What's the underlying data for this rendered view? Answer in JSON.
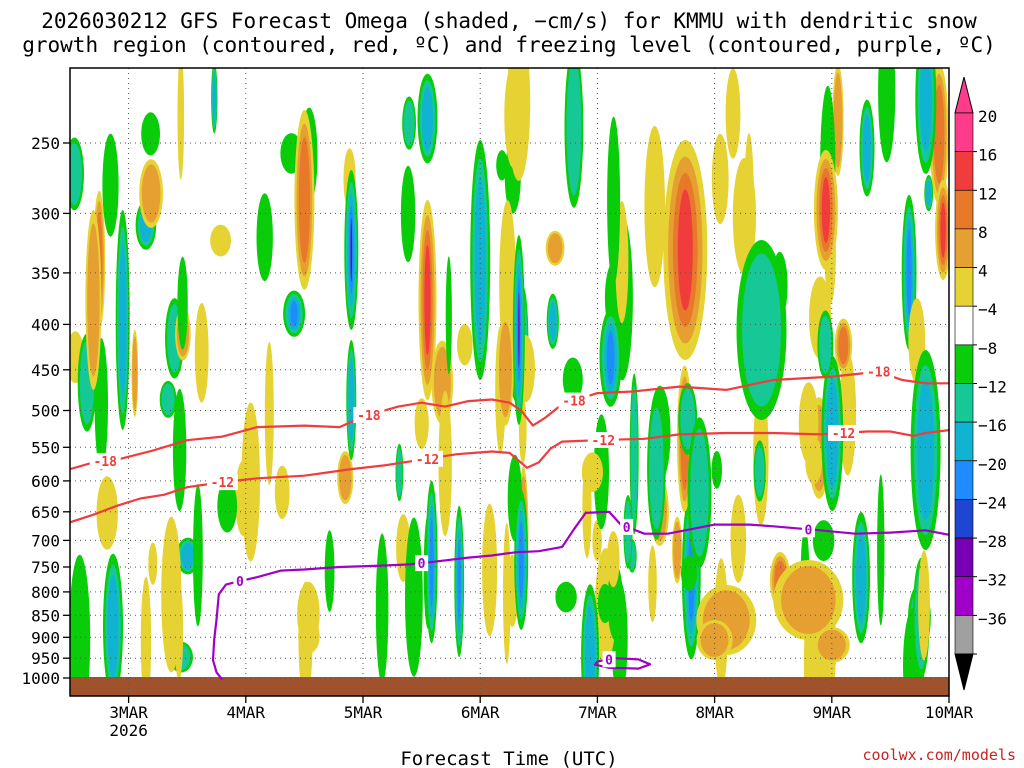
{
  "chart_data": {
    "type": "heatmap",
    "title": [
      "2026030212 GFS Forecast Omega (shaded, −cm/s) for KMMU with dendritic snow",
      "growth region (contoured, red, ºC) and freezing level (contoured, purple, ºC)"
    ],
    "xlabel": "Forecast Time (UTC)",
    "ylabel": "",
    "credit": "coolwx.com/models",
    "x_ticks": [
      {
        "label": "3MAR",
        "sub": "2026",
        "t": 0.5
      },
      {
        "label": "4MAR",
        "sub": "",
        "t": 1.5
      },
      {
        "label": "5MAR",
        "sub": "",
        "t": 2.5
      },
      {
        "label": "6MAR",
        "sub": "",
        "t": 3.5
      },
      {
        "label": "7MAR",
        "sub": "",
        "t": 4.5
      },
      {
        "label": "8MAR",
        "sub": "",
        "t": 5.5
      },
      {
        "label": "9MAR",
        "sub": "",
        "t": 6.5
      },
      {
        "label": "10MAR",
        "sub": "",
        "t": 7.5
      }
    ],
    "x_range": [
      0,
      7.5
    ],
    "y_ticks": [
      250,
      300,
      350,
      400,
      450,
      500,
      550,
      600,
      650,
      700,
      750,
      800,
      850,
      900,
      950,
      1000
    ],
    "y_range_hPa": [
      200,
      1025
    ],
    "grid": true,
    "colorbar": {
      "labels": [
        "20",
        "16",
        "12",
        "8",
        "4",
        "−4",
        "−8",
        "−12",
        "−16",
        "−20",
        "−24",
        "−28",
        "−32",
        "−36"
      ],
      "colors": [
        "#ff3c8c",
        "#f03c3c",
        "#e8782a",
        "#e6a032",
        "#e6d232",
        "#ffffff",
        "#0acd0a",
        "#16c896",
        "#10b4d2",
        "#1e8cff",
        "#1e46d2",
        "#7800b4",
        "#a000c8",
        "#a0a0a0"
      ],
      "min_color": "#000000"
    },
    "contours": [
      {
        "name": "dgz-minus-18",
        "label": "-18",
        "color": "#f03c3c",
        "points": [
          [
            0,
            582
          ],
          [
            0.2,
            572
          ],
          [
            0.4,
            568
          ],
          [
            0.7,
            555
          ],
          [
            1.0,
            540
          ],
          [
            1.3,
            535
          ],
          [
            1.6,
            522
          ],
          [
            2.0,
            520
          ],
          [
            2.3,
            522
          ],
          [
            2.5,
            508
          ],
          [
            2.8,
            495
          ],
          [
            3.0,
            490
          ],
          [
            3.2,
            495
          ],
          [
            3.4,
            488
          ],
          [
            3.6,
            486
          ],
          [
            3.75,
            490
          ],
          [
            3.85,
            500
          ],
          [
            3.95,
            520
          ],
          [
            4.05,
            510
          ],
          [
            4.2,
            492
          ],
          [
            4.5,
            478
          ],
          [
            4.8,
            476
          ],
          [
            5.2,
            470
          ],
          [
            5.6,
            474
          ],
          [
            6.0,
            462
          ],
          [
            6.5,
            458
          ],
          [
            6.9,
            452
          ],
          [
            7.1,
            462
          ],
          [
            7.3,
            466
          ],
          [
            7.5,
            466
          ]
        ],
        "label_t": [
          0.3,
          2.55,
          4.3,
          6.9
        ]
      },
      {
        "name": "dgz-minus-12",
        "label": "-12",
        "color": "#f03c3c",
        "points": [
          [
            0,
            668
          ],
          [
            0.2,
            655
          ],
          [
            0.4,
            640
          ],
          [
            0.6,
            628
          ],
          [
            0.8,
            622
          ],
          [
            1.0,
            610
          ],
          [
            1.3,
            602
          ],
          [
            1.6,
            596
          ],
          [
            2.0,
            592
          ],
          [
            2.4,
            582
          ],
          [
            2.7,
            576
          ],
          [
            3.0,
            568
          ],
          [
            3.3,
            560
          ],
          [
            3.6,
            556
          ],
          [
            3.75,
            558
          ],
          [
            3.9,
            580
          ],
          [
            4.0,
            572
          ],
          [
            4.1,
            552
          ],
          [
            4.2,
            542
          ],
          [
            4.5,
            540
          ],
          [
            4.9,
            538
          ],
          [
            5.2,
            532
          ],
          [
            5.6,
            530
          ],
          [
            6.0,
            530
          ],
          [
            6.4,
            532
          ],
          [
            6.8,
            528
          ],
          [
            7.0,
            528
          ],
          [
            7.2,
            534
          ],
          [
            7.3,
            530
          ],
          [
            7.5,
            526
          ]
        ],
        "label_t": [
          1.3,
          3.05,
          4.55,
          6.6
        ]
      },
      {
        "name": "freezing-level",
        "label": "0",
        "color": "#a000c8",
        "points": [
          [
            1.3,
            1005
          ],
          [
            1.25,
            985
          ],
          [
            1.22,
            955
          ],
          [
            1.23,
            905
          ],
          [
            1.25,
            860
          ],
          [
            1.27,
            805
          ],
          [
            1.33,
            785
          ],
          [
            1.45,
            778
          ],
          [
            1.6,
            770
          ],
          [
            1.8,
            757
          ],
          [
            2.0,
            755
          ],
          [
            2.3,
            750
          ],
          [
            2.6,
            748
          ],
          [
            2.9,
            745
          ],
          [
            3.1,
            740
          ],
          [
            3.4,
            732
          ],
          [
            3.6,
            728
          ],
          [
            3.8,
            722
          ],
          [
            4.0,
            720
          ],
          [
            4.2,
            712
          ],
          [
            4.3,
            680
          ],
          [
            4.4,
            652
          ],
          [
            4.6,
            650
          ],
          [
            4.7,
            672
          ],
          [
            4.9,
            688
          ],
          [
            5.1,
            688
          ],
          [
            5.3,
            680
          ],
          [
            5.5,
            672
          ],
          [
            5.8,
            672
          ],
          [
            6.0,
            675
          ],
          [
            6.4,
            682
          ],
          [
            6.7,
            688
          ],
          [
            7.0,
            686
          ],
          [
            7.3,
            682
          ],
          [
            7.5,
            690
          ]
        ],
        "label_t": [
          1.45,
          3.0,
          4.75,
          6.3
        ]
      },
      {
        "name": "freezing-level-loop",
        "label": "0",
        "color": "#a000c8",
        "points": [
          [
            4.5,
            958
          ],
          [
            4.65,
            950
          ],
          [
            4.85,
            953
          ],
          [
            4.95,
            965
          ],
          [
            4.85,
            976
          ],
          [
            4.6,
            974
          ],
          [
            4.48,
            966
          ],
          [
            4.5,
            958
          ]
        ],
        "label_t": [
          4.6
        ]
      }
    ]
  }
}
